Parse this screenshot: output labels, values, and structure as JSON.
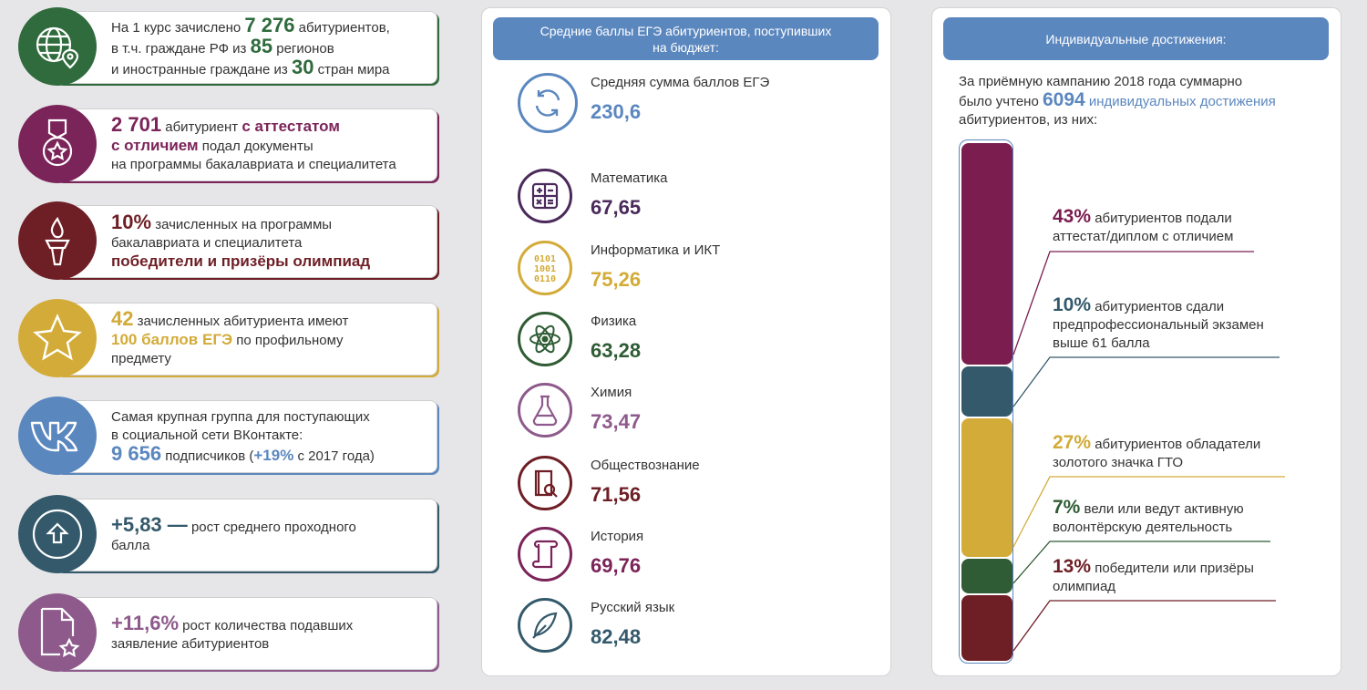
{
  "stats": [
    {
      "id": "enrolled",
      "color": "#2f6b3c",
      "icon": "globe-pin-icon",
      "l1a": "На 1 курс зачислено ",
      "n1": "7 276",
      "l1b": " абитуриентов,",
      "l2a": "в т.ч. граждане РФ из ",
      "n2": "85",
      "l2b": " регионов",
      "l3a": "и иностранные граждане из ",
      "n3": "30",
      "l3b": " стран мира"
    },
    {
      "id": "honors",
      "color": "#7b2459",
      "icon": "medal-star-icon",
      "n1": "2 701",
      "l1a": " абитуриент ",
      "h1": "с аттестатом",
      "h2": "с отличием",
      "l2b": " подал документы",
      "l3": "на программы бакалавриата и специалитета"
    },
    {
      "id": "olymp",
      "color": "#6e1f25",
      "icon": "torch-icon",
      "n1": "10%",
      "l1b": " зачисленных на программы",
      "l2": "бакалавриата и специалитета",
      "h3": "победители и призёры олимпиад"
    },
    {
      "id": "hundred",
      "color": "#d3ab38",
      "icon": "star-icon",
      "n1": "42",
      "l1b": " зачисленных абитуриента имеют",
      "h2": "100 баллов ЕГЭ",
      "l2b": " по профильному",
      "l3": "предмету"
    },
    {
      "id": "vk",
      "color": "#5b87bf",
      "icon": "vk-logo-icon",
      "l1": "Самая крупная группа для поступающих",
      "l2": "в социальной сети ВКонтакте:",
      "n3": "9 656",
      "l3a": " подписчиков (",
      "h3": "+19%",
      "l3b": " с 2017 года)"
    },
    {
      "id": "growth",
      "color": "#34596b",
      "icon": "arrow-up-circle-icon",
      "n1": "+5,83 —",
      "l1b": " рост среднего проходного",
      "l2": "балла"
    },
    {
      "id": "apps",
      "color": "#8e5a8c",
      "icon": "document-star-icon",
      "n1": "+11,6%",
      "l1b": " рост количества подавших",
      "l2": "заявление абитуриентов"
    }
  ],
  "scores": {
    "title_l1": "Средние баллы ЕГЭ абитуриентов, поступивших",
    "title_l2": "на бюджет:",
    "items": [
      {
        "name": "Средняя сумма баллов ЕГЭ",
        "value": "230,6",
        "color": "#5b87bf",
        "icon": "cycle-arrows-icon"
      },
      {
        "name": "Математика",
        "value": "67,65",
        "color": "#4a2a5b",
        "icon": "calculator-icon"
      },
      {
        "name": "Информатика и ИКТ",
        "value": "75,26",
        "color": "#d3ab38",
        "icon": "binary-code-icon"
      },
      {
        "name": "Физика",
        "value": "63,28",
        "color": "#2f5c34",
        "icon": "atom-icon"
      },
      {
        "name": "Химия",
        "value": "73,47",
        "color": "#8e5a8c",
        "icon": "flask-icon"
      },
      {
        "name": "Обществознание",
        "value": "71,56",
        "color": "#6e1f25",
        "icon": "book-search-icon"
      },
      {
        "name": "История",
        "value": "69,76",
        "color": "#7b2459",
        "icon": "scroll-icon"
      },
      {
        "name": "Русский язык",
        "value": "82,48",
        "color": "#34596b",
        "icon": "feather-icon"
      }
    ]
  },
  "achievements": {
    "title": "Индивидуальные достижения:",
    "intro_l1": "За приёмную кампанию 2018 года суммарно",
    "intro_l2a": "было учтено ",
    "intro_num": "6094",
    "intro_l2b": " индивидуальных достижения",
    "intro_l3": "абитуриентов, из них:",
    "items": [
      {
        "pct": "43%",
        "share": 43,
        "color": "#7b1d4f",
        "l1": " абитуриентов подали",
        "l2": "аттестат/диплом с отличием"
      },
      {
        "pct": "10%",
        "share": 10,
        "color": "#34596b",
        "l1": " абитуриентов сдали",
        "l2": "предпрофессиональный экзамен",
        "l3": "выше 61 балла"
      },
      {
        "pct": "27%",
        "share": 27,
        "color": "#d3ab38",
        "l1": " абитуриентов обладатели",
        "l2": "золотого значка ГТО"
      },
      {
        "pct": "7%",
        "share": 7,
        "color": "#2f5c34",
        "l1": " вели или ведут активную",
        "l2": "волонтёрскую деятельность"
      },
      {
        "pct": "13%",
        "share": 13,
        "color": "#6e1f25",
        "l1": " победители или призёры",
        "l2": "олимпиад"
      }
    ]
  }
}
